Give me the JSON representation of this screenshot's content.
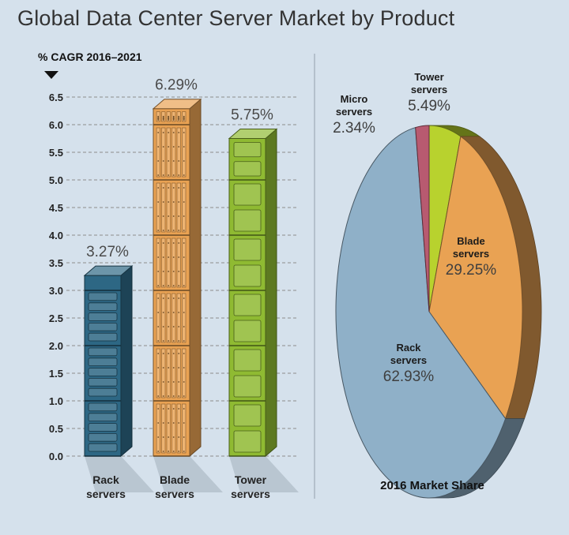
{
  "title": "Global Data Center Server Market by Product",
  "chart_data": [
    {
      "type": "bar",
      "ylabel": "% CAGR 2016–2021",
      "ylim": [
        0,
        6.5
      ],
      "yticks": [
        "0.0",
        "0.5",
        "1.0",
        "1.5",
        "2.0",
        "2.5",
        "3.0",
        "3.5",
        "4.0",
        "4.5",
        "5.0",
        "5.5",
        "6.0",
        "6.5"
      ],
      "grid": true,
      "categories": [
        {
          "line1": "Rack",
          "line2": "servers"
        },
        {
          "line1": "Blade",
          "line2": "servers"
        },
        {
          "line1": "Tower",
          "line2": "servers"
        }
      ],
      "values": [
        3.27,
        6.29,
        5.75
      ],
      "value_labels": [
        "3.27%",
        "6.29%",
        "5.75%"
      ],
      "colors": [
        "#2d6784",
        "#e9a253",
        "#8fba32"
      ]
    },
    {
      "type": "pie",
      "title": "2016 Market Share",
      "slices": [
        {
          "line1": "Rack",
          "line2": "servers",
          "value": 62.93,
          "label": "62.93%",
          "color": "#8fb0c8"
        },
        {
          "line1": "Blade",
          "line2": "servers",
          "value": 29.25,
          "label": "29.25%",
          "color": "#e9a253"
        },
        {
          "line1": "Tower",
          "line2": "servers",
          "value": 5.49,
          "label": "5.49%",
          "color": "#b8d22e"
        },
        {
          "line1": "Micro",
          "line2": "servers",
          "value": 2.34,
          "label": "2.34%",
          "color": "#b85a70"
        }
      ]
    }
  ]
}
